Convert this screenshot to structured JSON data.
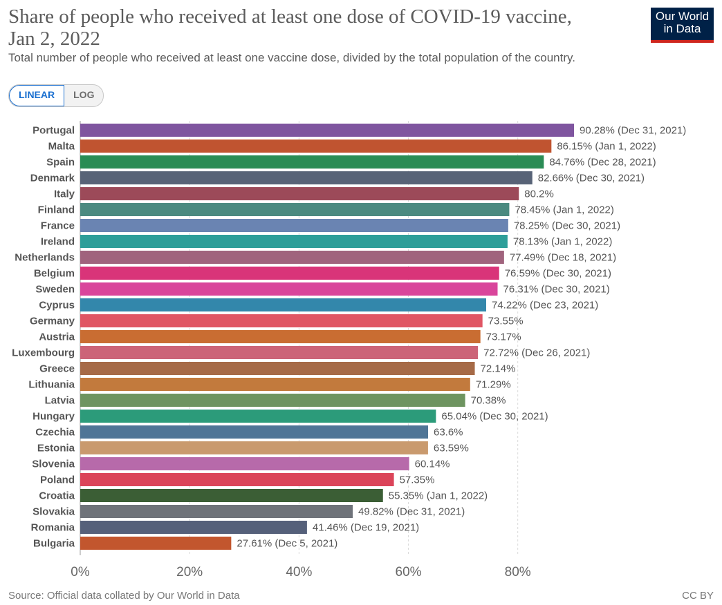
{
  "header": {
    "title": "Share of people who received at least one dose of COVID-19 vaccine, Jan 2, 2022",
    "subtitle": "Total number of people who received at least one vaccine dose, divided by the total population of the country.",
    "logo_line1": "Our World",
    "logo_line2": "in Data"
  },
  "scale_toggle": {
    "linear": "LINEAR",
    "log": "LOG",
    "selected": "LINEAR"
  },
  "footer": {
    "source": "Source: Official data collated by Our World in Data",
    "license": "CC BY"
  },
  "chart_data": {
    "type": "bar",
    "orientation": "horizontal",
    "title": "Share of people who received at least one dose of COVID-19 vaccine, Jan 2, 2022",
    "xlabel": "",
    "ylabel": "",
    "xlim": [
      0,
      90.28
    ],
    "xticks": [
      0,
      20,
      40,
      60,
      80
    ],
    "xtick_labels": [
      "0%",
      "20%",
      "40%",
      "60%",
      "80%"
    ],
    "grid": "vertical dashed",
    "bars": [
      {
        "name": "Portugal",
        "value": 90.28,
        "label": "90.28% (Dec 31, 2021)",
        "color": "#7f559f"
      },
      {
        "name": "Malta",
        "value": 86.15,
        "label": "86.15% (Jan 1, 2022)",
        "color": "#c05430"
      },
      {
        "name": "Spain",
        "value": 84.76,
        "label": "84.76% (Dec 28, 2021)",
        "color": "#2a8c55"
      },
      {
        "name": "Denmark",
        "value": 82.66,
        "label": "82.66% (Dec 30, 2021)",
        "color": "#586377"
      },
      {
        "name": "Italy",
        "value": 80.2,
        "label": "80.2%",
        "color": "#9c4a59"
      },
      {
        "name": "Finland",
        "value": 78.45,
        "label": "78.45% (Jan 1, 2022)",
        "color": "#4b8a80"
      },
      {
        "name": "France",
        "value": 78.25,
        "label": "78.25% (Dec 30, 2021)",
        "color": "#6a84b2"
      },
      {
        "name": "Ireland",
        "value": 78.13,
        "label": "78.13% (Jan 1, 2022)",
        "color": "#2e9e99"
      },
      {
        "name": "Netherlands",
        "value": 77.49,
        "label": "77.49% (Dec 18, 2021)",
        "color": "#a0637d"
      },
      {
        "name": "Belgium",
        "value": 76.59,
        "label": "76.59% (Dec 30, 2021)",
        "color": "#d93479"
      },
      {
        "name": "Sweden",
        "value": 76.31,
        "label": "76.31% (Dec 30, 2021)",
        "color": "#d9459b"
      },
      {
        "name": "Cyprus",
        "value": 74.22,
        "label": "74.22% (Dec 23, 2021)",
        "color": "#3387ab"
      },
      {
        "name": "Germany",
        "value": 73.55,
        "label": "73.55%",
        "color": "#e05664"
      },
      {
        "name": "Austria",
        "value": 73.17,
        "label": "73.17%",
        "color": "#c96d32"
      },
      {
        "name": "Luxembourg",
        "value": 72.72,
        "label": "72.72% (Dec 26, 2021)",
        "color": "#cc6478"
      },
      {
        "name": "Greece",
        "value": 72.14,
        "label": "72.14%",
        "color": "#a66a47"
      },
      {
        "name": "Lithuania",
        "value": 71.29,
        "label": "71.29%",
        "color": "#c27a3d"
      },
      {
        "name": "Latvia",
        "value": 70.38,
        "label": "70.38%",
        "color": "#6e9460"
      },
      {
        "name": "Hungary",
        "value": 65.04,
        "label": "65.04% (Dec 30, 2021)",
        "color": "#2c9b7a"
      },
      {
        "name": "Czechia",
        "value": 63.6,
        "label": "63.6%",
        "color": "#4f7596"
      },
      {
        "name": "Estonia",
        "value": 63.59,
        "label": "63.59%",
        "color": "#c99a6e"
      },
      {
        "name": "Slovenia",
        "value": 60.14,
        "label": "60.14%",
        "color": "#b76aaa"
      },
      {
        "name": "Poland",
        "value": 57.35,
        "label": "57.35%",
        "color": "#db4459"
      },
      {
        "name": "Croatia",
        "value": 55.35,
        "label": "55.35% (Jan 1, 2022)",
        "color": "#3b5e35"
      },
      {
        "name": "Slovakia",
        "value": 49.82,
        "label": "49.82% (Dec 31, 2021)",
        "color": "#6f737a"
      },
      {
        "name": "Romania",
        "value": 41.46,
        "label": "41.46% (Dec 19, 2021)",
        "color": "#55607a"
      },
      {
        "name": "Bulgaria",
        "value": 27.61,
        "label": "27.61% (Dec 5, 2021)",
        "color": "#c2562e"
      }
    ]
  }
}
